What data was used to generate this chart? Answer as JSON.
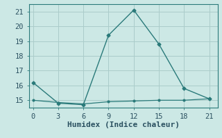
{
  "x": [
    0,
    3,
    6,
    9,
    12,
    15,
    18,
    21
  ],
  "y_main": [
    16.2,
    14.8,
    14.7,
    19.4,
    21.1,
    18.8,
    15.8,
    15.1
  ],
  "y_flat": [
    15.0,
    14.85,
    14.75,
    14.9,
    14.95,
    15.0,
    15.0,
    15.1
  ],
  "line_color": "#2a7a7a",
  "bg_color": "#cce8e5",
  "grid_color": "#aaccca",
  "xlabel": "Humidex (Indice chaleur)",
  "xlim": [
    -0.5,
    22
  ],
  "ylim": [
    14.5,
    21.5
  ],
  "xticks": [
    0,
    3,
    6,
    9,
    12,
    15,
    18,
    21
  ],
  "yticks": [
    15,
    16,
    17,
    18,
    19,
    20,
    21
  ],
  "font_color": "#2a5060",
  "tick_fontsize": 7.5,
  "xlabel_fontsize": 8.0
}
